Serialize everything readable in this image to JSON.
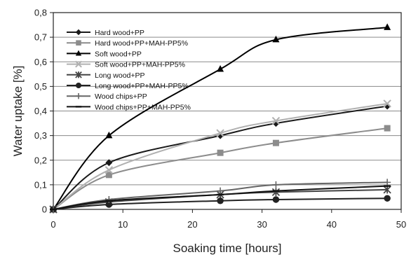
{
  "chart_data": {
    "type": "line",
    "title": "",
    "xlabel": "Soaking time [hours]",
    "ylabel": "Water uptake [%]",
    "xlim": [
      0,
      50
    ],
    "ylim": [
      0,
      0.8
    ],
    "x_ticks": [
      "0",
      "10",
      "20",
      "30",
      "40",
      "50"
    ],
    "y_ticks": [
      "0",
      "0,1",
      "0,2",
      "0,3",
      "0,4",
      "0,5",
      "0,6",
      "0,7",
      "0,8"
    ],
    "grid": "horizontal",
    "legend_position": "top-left",
    "series": [
      {
        "name": "Hard wood+PP",
        "marker": "diamond",
        "color": "#1a1a1a",
        "x": [
          0,
          8,
          24,
          32,
          48
        ],
        "y": [
          0,
          0.19,
          0.3,
          0.35,
          0.42
        ]
      },
      {
        "name": "Hard wood+PP+MAH-PP5%",
        "marker": "square",
        "color": "#8c8c8c",
        "x": [
          0,
          8,
          24,
          32,
          48
        ],
        "y": [
          0,
          0.14,
          0.23,
          0.27,
          0.33
        ]
      },
      {
        "name": "Soft wood+PP",
        "marker": "triangle",
        "color": "#000000",
        "x": [
          0,
          8,
          24,
          32,
          48
        ],
        "y": [
          0,
          0.3,
          0.57,
          0.69,
          0.74
        ]
      },
      {
        "name": "Soft wood+PP+MAH-PP5%",
        "marker": "x",
        "color": "#b0b0b0",
        "x": [
          0,
          8,
          24,
          32,
          48
        ],
        "y": [
          0,
          0.16,
          0.31,
          0.36,
          0.43
        ]
      },
      {
        "name": "Long wood+PP",
        "marker": "star",
        "color": "#444444",
        "x": [
          0,
          8,
          24,
          32,
          48
        ],
        "y": [
          0,
          0.03,
          0.06,
          0.07,
          0.08
        ]
      },
      {
        "name": "Long wood+PP+MAH-PP5%",
        "marker": "circle",
        "color": "#222222",
        "x": [
          0,
          8,
          24,
          32,
          48
        ],
        "y": [
          0,
          0.02,
          0.035,
          0.04,
          0.045
        ]
      },
      {
        "name": "Wood chips+PP",
        "marker": "plus",
        "color": "#666666",
        "x": [
          0,
          8,
          24,
          32,
          48
        ],
        "y": [
          0,
          0.04,
          0.075,
          0.1,
          0.11
        ]
      },
      {
        "name": "Wood chips+PP+MAH-PP5%",
        "marker": "dash",
        "color": "#111111",
        "x": [
          0,
          8,
          24,
          32,
          48
        ],
        "y": [
          0,
          0.035,
          0.06,
          0.075,
          0.095
        ]
      }
    ]
  }
}
